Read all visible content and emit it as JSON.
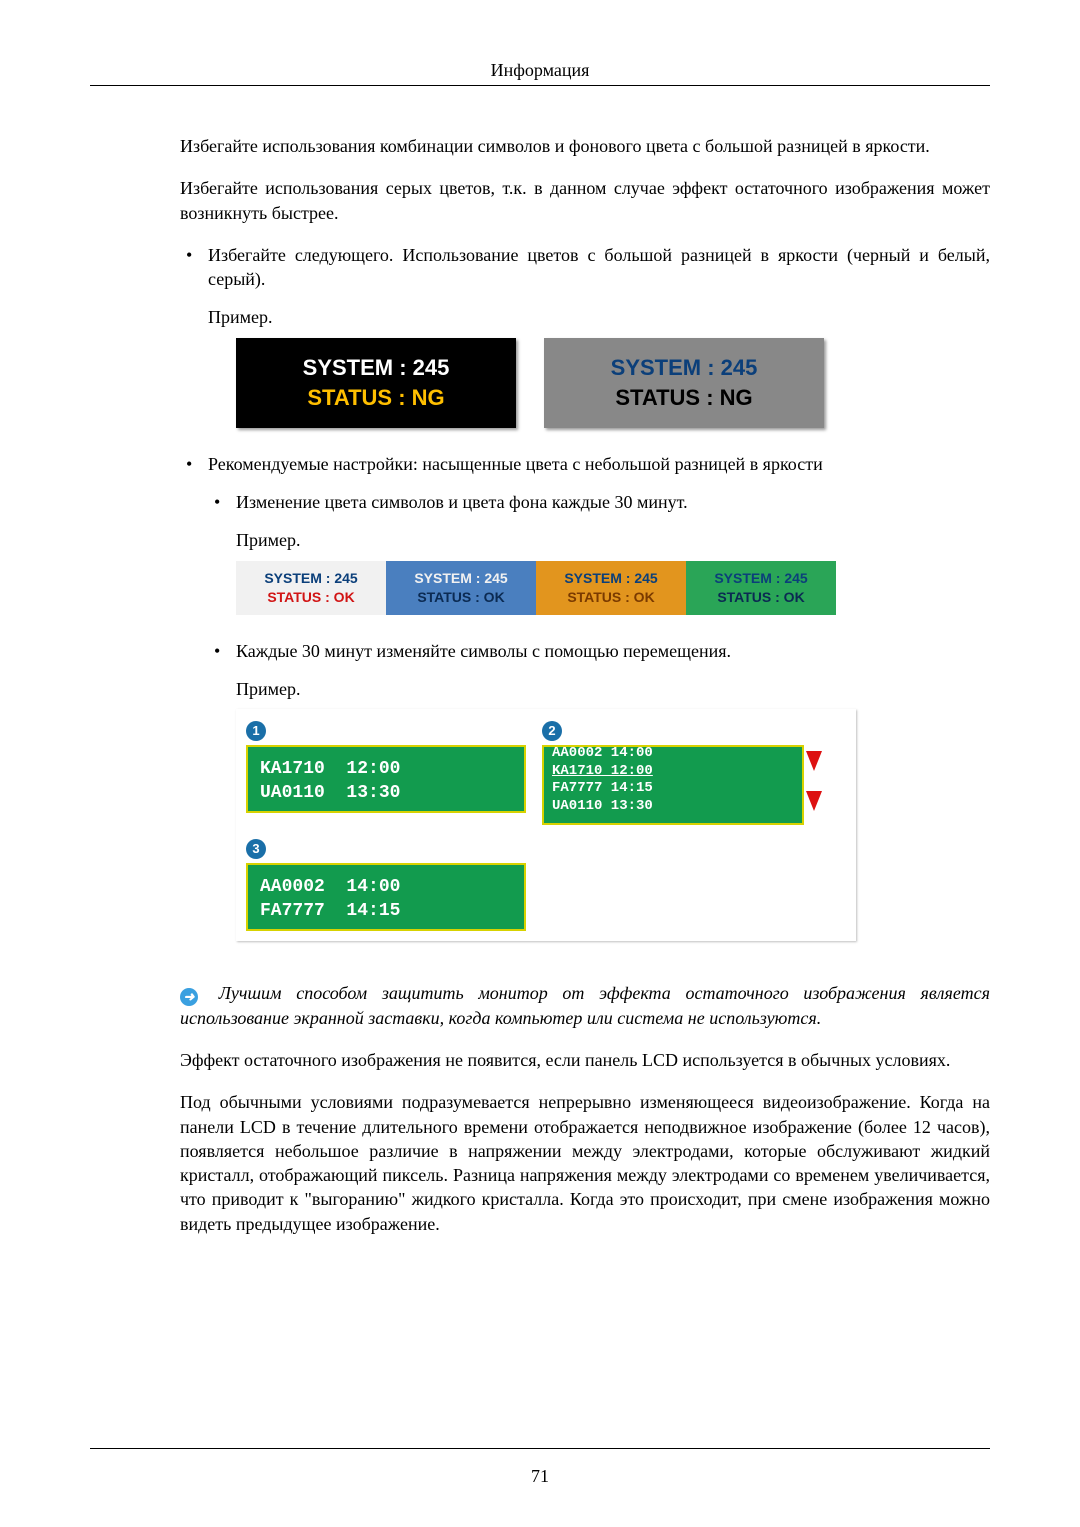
{
  "header": {
    "title": "Информация"
  },
  "page_number": "71",
  "content": {
    "para1": "Избегайте использования комбинации символов и фонового цвета с большой разницей в яркости.",
    "para2": "Избегайте использования серых цветов, т.к. в данном случае эффект остаточного изображения может возникнуть быстрее.",
    "bullet1": "Избегайте следующего. Использование цветов с большой разницей в яркости (черный и белый, серый).",
    "example_label": "Пример.",
    "bullet2": "Рекомендуемые настройки: насыщенные цвета с небольшой разницей в яркости",
    "sub_bullet1": "Изменение цвета символов и цвета фона каждые 30 минут.",
    "sub_bullet2": "Каждые 30 минут изменяйте символы с помощью перемещения.",
    "note_text": "Лучшим способом защитить монитор от эффекта остаточного изображения является использование экранной заставки, когда компьютер или система не используются.",
    "para3": "Эффект остаточного изображения не появится, если панель LCD используется в обычных условиях.",
    "para4": "Под обычными условиями подразумевается непрерывно изменяющееся видеоизображение. Когда на панели LCD в течение длительного времени отображается неподвижное изображение (более 12 часов), появляется небольшое различие в напряжении между электродами, которые обслуживают жидкий кристалл, отображающий пиксель. Разница напряжения между электродами со временем увеличивается, что приводит к \"выгоранию\" жидкого кристалла. Когда это происходит, при смене изображения можно видеть предыдущее изображение."
  },
  "example1": {
    "line1": "SYSTEM : 245",
    "line2": "STATUS : NG",
    "boxes": [
      {
        "bg": "#000000",
        "line1_color": "#ffffff",
        "line2_color": "#ffbf00"
      },
      {
        "bg": "#888888",
        "line1_color": "#0b3f7a",
        "line2_color": "#000000"
      }
    ]
  },
  "example2": {
    "line1": "SYSTEM : 245",
    "line2": "STATUS : OK",
    "cells": [
      {
        "bg": "#f1f1f1",
        "c1": "#0b3f7a",
        "c2": "#d11414"
      },
      {
        "bg": "#4a7fbf",
        "c1": "#f1f1f1",
        "c2": "#0b2a52"
      },
      {
        "bg": "#e2951e",
        "c1": "#0b3f7a",
        "c2": "#7a3a00"
      },
      {
        "bg": "#2aa557",
        "c1": "#0b3f7a",
        "c2": "#0b2a52"
      }
    ]
  },
  "example3": {
    "badge1": "1",
    "badge2": "2",
    "badge3": "3",
    "panel1_line1": "KA1710  12:00",
    "panel1_line2": "UA0110  13:30",
    "panel3_line1": "AA0002  14:00",
    "panel3_line2": "FA7777  14:15",
    "scroll_lines": [
      "AA0002  14:00",
      "KA1710  12:00",
      "FA7777  14:15",
      "UA0110  13:30"
    ],
    "panel_bg": "#129b4e",
    "panel_border": "#d7d200",
    "panel_text": "#ffffff",
    "arrow_color": "#d11414"
  }
}
